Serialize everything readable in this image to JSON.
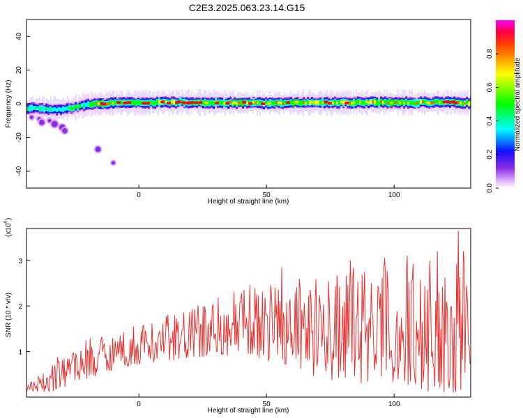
{
  "title": "C2E3.2025.063.23.14.G15",
  "chart_data": [
    {
      "type": "heatmap",
      "xlabel": "Height of straight line (km)",
      "ylabel": "Frequency (Hz)",
      "xlim": [
        -44,
        130
      ],
      "ylim": [
        -50,
        50
      ],
      "xticks": [
        0,
        50,
        100
      ],
      "yticks": [
        -40,
        -20,
        0,
        20,
        40
      ],
      "xtick_labels": [
        "0",
        "50",
        "100"
      ],
      "ytick_labels": [
        "-40",
        "-20",
        "0",
        "20",
        "40"
      ],
      "colorbar": {
        "label": "Normalized spectral amplitude",
        "range": [
          0,
          1
        ],
        "ticks": [
          0.0,
          0.2,
          0.4,
          0.6,
          0.8
        ],
        "tick_labels": [
          "0.0",
          "0.2",
          "0.4",
          "0.6",
          "0.8"
        ],
        "colormap": "rainbow (magenta-blue-cyan-green-yellow-red)"
      },
      "ridge": {
        "x": [
          -44,
          -35,
          -30,
          -25,
          -20,
          -15,
          -10,
          0,
          10,
          20,
          40,
          60,
          80,
          100,
          120,
          130
        ],
        "frequency_hz": [
          -2.5,
          -3.5,
          -3,
          -2,
          -0.5,
          0,
          0.5,
          0.5,
          0.8,
          0.8,
          0.5,
          0.5,
          0.7,
          0.8,
          0.8,
          0.5
        ]
      },
      "scatter_points": [
        {
          "x": -42,
          "y": -8
        },
        {
          "x": -39,
          "y": -9
        },
        {
          "x": -38,
          "y": -11
        },
        {
          "x": -35,
          "y": -10
        },
        {
          "x": -33,
          "y": -12
        },
        {
          "x": -30,
          "y": -14
        },
        {
          "x": -29,
          "y": -16
        },
        {
          "x": -16,
          "y": -27
        },
        {
          "x": -10,
          "y": -35
        }
      ]
    },
    {
      "type": "line",
      "xlabel": "Height of straight line (km)",
      "ylabel": "SNR (10 * v/v)",
      "multiplier": "(x10",
      "multiplier_exp": "4",
      "xlim": [
        -44,
        130
      ],
      "ylim": [
        0,
        3.7
      ],
      "xticks": [
        0,
        50,
        100
      ],
      "yticks": [
        1,
        2,
        3
      ],
      "xtick_labels": [
        "0",
        "50",
        "100"
      ],
      "ytick_labels": [
        "1",
        "2",
        "3"
      ],
      "series": [
        {
          "color": "#e8312f",
          "envelope": {
            "x": [
              -44,
              -35,
              -30,
              -20,
              -10,
              0,
              10,
              20,
              30,
              40,
              50,
              60,
              70,
              80,
              90,
              100,
              110,
              120,
              126,
              130
            ],
            "low": [
              0.1,
              0.1,
              0.2,
              0.4,
              0.6,
              0.7,
              0.8,
              0.8,
              0.9,
              0.9,
              0.8,
              0.7,
              0.4,
              0.3,
              0.3,
              0.2,
              0.1,
              0.1,
              0.1,
              0.2
            ],
            "high": [
              0.3,
              0.6,
              1.1,
              1.3,
              1.5,
              1.6,
              1.8,
              2.0,
              2.2,
              2.4,
              2.6,
              2.7,
              2.7,
              2.8,
              3.0,
              3.1,
              3.2,
              3.2,
              3.6,
              2.2
            ]
          },
          "peaks": [
            {
              "x": 56,
              "y": 2.85
            },
            {
              "x": 63,
              "y": 2.6
            },
            {
              "x": 83,
              "y": 3.0
            },
            {
              "x": 105,
              "y": 3.1
            },
            {
              "x": 117,
              "y": 3.2
            },
            {
              "x": 125,
              "y": 3.65
            },
            {
              "x": 127,
              "y": 3.2
            }
          ]
        }
      ]
    }
  ]
}
